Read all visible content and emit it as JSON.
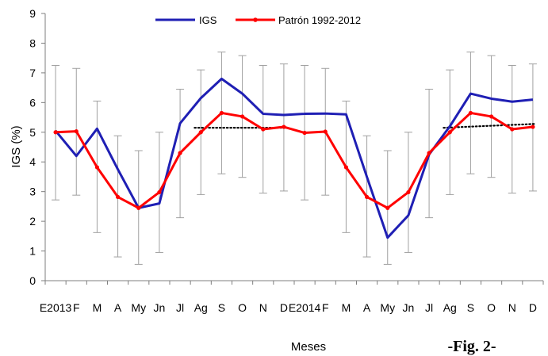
{
  "chart_data": {
    "type": "line",
    "title": "",
    "xlabel": "Meses",
    "ylabel": "IGS (%)",
    "ylim": [
      0,
      9
    ],
    "yticks": [
      0,
      1,
      2,
      3,
      4,
      5,
      6,
      7,
      8,
      9
    ],
    "grid": false,
    "legend_position": "top-center",
    "categories": [
      "E2013",
      "F",
      "M",
      "A",
      "My",
      "Jn",
      "Jl",
      "Ag",
      "S",
      "O",
      "N",
      "D",
      "E2014",
      "F",
      "M",
      "A",
      "My",
      "Jn",
      "Jl",
      "Ag",
      "S",
      "O",
      "N",
      "D"
    ],
    "series": [
      {
        "name": "IGS",
        "color": "#1f1fb4",
        "marker": "none",
        "values": [
          5.05,
          4.2,
          5.12,
          3.75,
          2.45,
          2.6,
          5.3,
          6.15,
          6.8,
          6.3,
          5.62,
          5.58,
          5.62,
          5.63,
          5.6,
          3.5,
          1.45,
          2.2,
          4.25,
          5.2,
          6.3,
          6.13,
          6.03,
          6.1
        ]
      },
      {
        "name": "Patrón 1992-2012",
        "color": "#ff0000",
        "marker": "circle",
        "values": [
          5.0,
          5.03,
          3.82,
          2.82,
          2.45,
          2.98,
          4.3,
          5.0,
          5.65,
          5.53,
          5.1,
          5.18,
          4.98,
          5.02,
          3.82,
          2.82,
          2.45,
          2.98,
          4.3,
          5.0,
          5.65,
          5.53,
          5.1,
          5.18
        ]
      }
    ],
    "error_bars": {
      "series": "Patrón 1992-2012",
      "color": "#a0a0a0",
      "upper": [
        7.25,
        7.15,
        6.05,
        4.88,
        4.38,
        5.0,
        6.45,
        7.1,
        7.7,
        7.58,
        7.25,
        7.3,
        7.25,
        7.15,
        6.05,
        4.88,
        4.38,
        5.0,
        6.45,
        7.1,
        7.7,
        7.58,
        7.25,
        7.3
      ],
      "lower": [
        2.72,
        2.88,
        1.62,
        0.8,
        0.55,
        0.95,
        2.12,
        2.9,
        3.6,
        3.48,
        2.95,
        3.02,
        2.72,
        2.88,
        1.62,
        0.8,
        0.55,
        0.95,
        2.12,
        2.9,
        3.6,
        3.48,
        2.95,
        3.02
      ]
    },
    "trendlines": [
      {
        "color": "#000000",
        "style": "dotted",
        "from_index": 7,
        "to_index": 11,
        "from_value": 5.15,
        "to_value": 5.15
      },
      {
        "color": "#000000",
        "style": "dotted",
        "from_index": 19,
        "to_index": 23,
        "from_value": 5.15,
        "to_value": 5.28
      }
    ],
    "annotation": "-Fig. 2-"
  }
}
